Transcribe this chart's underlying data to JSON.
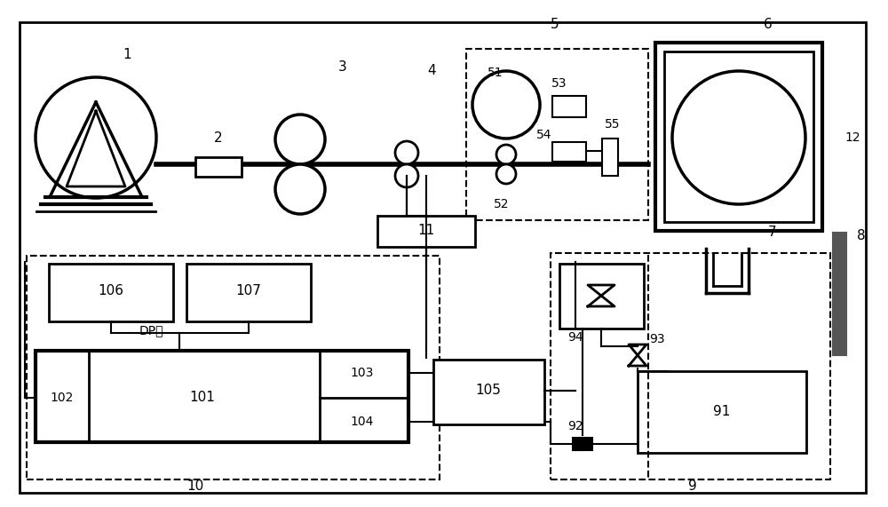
{
  "bg_color": "#ffffff",
  "lc": "#000000",
  "fig_w": 10.0,
  "fig_h": 5.71,
  "dpi": 100
}
